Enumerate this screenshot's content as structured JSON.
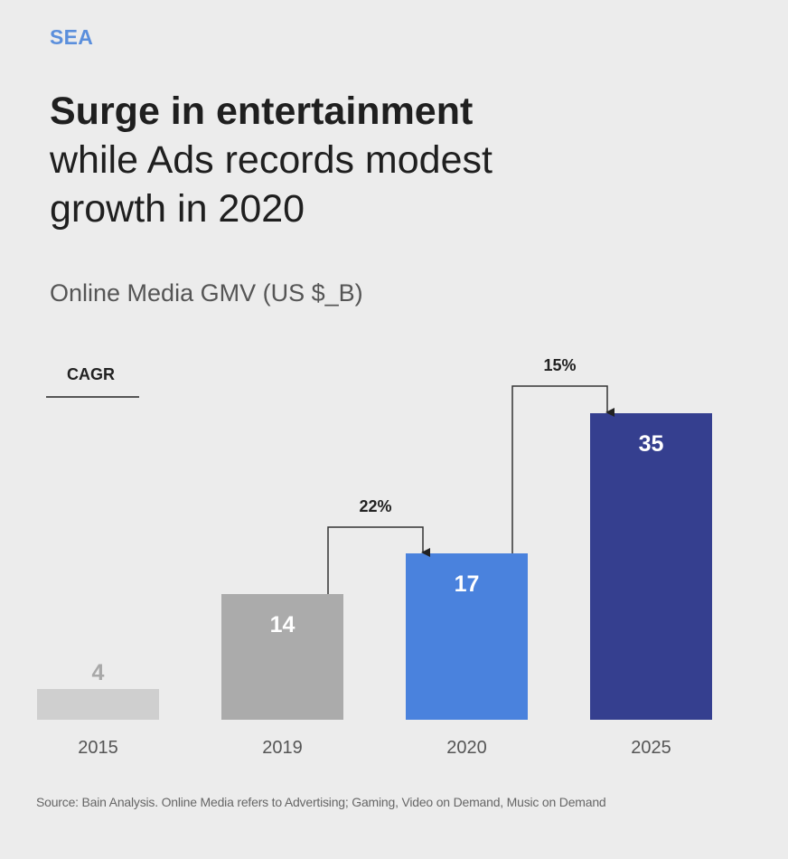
{
  "header": {
    "region": "SEA",
    "title_bold": "Surge in entertainment",
    "title_rest_line1": "while Ads records modest",
    "title_rest_line2": "growth in 2020"
  },
  "legend": {
    "cagr_label": "CAGR"
  },
  "footer": {
    "source": "Source: Bain Analysis. Online Media refers to Advertising; Gaming, Video on Demand, Music on Demand"
  },
  "chart_data": {
    "type": "bar",
    "title": "Online Media GMV (US $_B)",
    "xlabel": "",
    "ylabel": "",
    "categories": [
      "2015",
      "2019",
      "2020",
      "2025"
    ],
    "values": [
      4,
      14,
      17,
      35
    ],
    "value_labels": [
      "4",
      "14",
      "17",
      "35"
    ],
    "colors": [
      "#cfcfcf",
      "#ababab",
      "#4a82dd",
      "#353f8f"
    ],
    "label_colors": [
      "#a8a8a8",
      "#ffffff",
      "#ffffff",
      "#ffffff"
    ],
    "ylim": [
      0,
      35
    ],
    "grid": false,
    "annotations": [
      {
        "type": "cagr",
        "from": "2019",
        "to": "2020",
        "label": "22%"
      },
      {
        "type": "cagr",
        "from": "2020",
        "to": "2025",
        "label": "15%"
      }
    ]
  }
}
